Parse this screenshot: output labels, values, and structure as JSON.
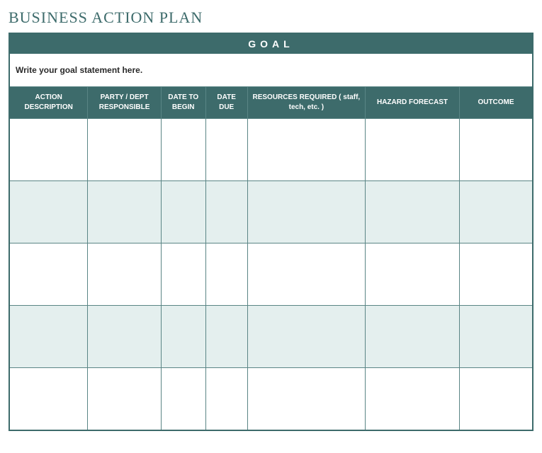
{
  "title": "BUSINESS ACTION PLAN",
  "goal": {
    "header_label": "GOAL",
    "placeholder": "Write your goal statement here."
  },
  "columns": {
    "action": "ACTION DESCRIPTION",
    "party": "PARTY / DEPT RESPONSIBLE",
    "begin": "DATE TO BEGIN",
    "due": "DATE DUE",
    "resources": "RESOURCES  REQUIRED ( staff, tech, etc. )",
    "hazard": "HAZARD FORECAST",
    "outcome": "OUTCOME"
  },
  "rows": [
    {
      "action": "",
      "party": "",
      "begin": "",
      "due": "",
      "resources": "",
      "hazard": "",
      "outcome": ""
    },
    {
      "action": "",
      "party": "",
      "begin": "",
      "due": "",
      "resources": "",
      "hazard": "",
      "outcome": ""
    },
    {
      "action": "",
      "party": "",
      "begin": "",
      "due": "",
      "resources": "",
      "hazard": "",
      "outcome": ""
    },
    {
      "action": "",
      "party": "",
      "begin": "",
      "due": "",
      "resources": "",
      "hazard": "",
      "outcome": ""
    },
    {
      "action": "",
      "party": "",
      "begin": "",
      "due": "",
      "resources": "",
      "hazard": "",
      "outcome": ""
    }
  ],
  "styling": {
    "title_color": "#3d6b6b",
    "header_bg": "#3d6b6b",
    "header_text": "#ffffff",
    "row_tint": "#e4efee",
    "row_white": "#ffffff",
    "border_color": "#5a8585",
    "title_fontsize": 22,
    "header_fontsize": 10,
    "goal_header_fontsize": 14
  }
}
